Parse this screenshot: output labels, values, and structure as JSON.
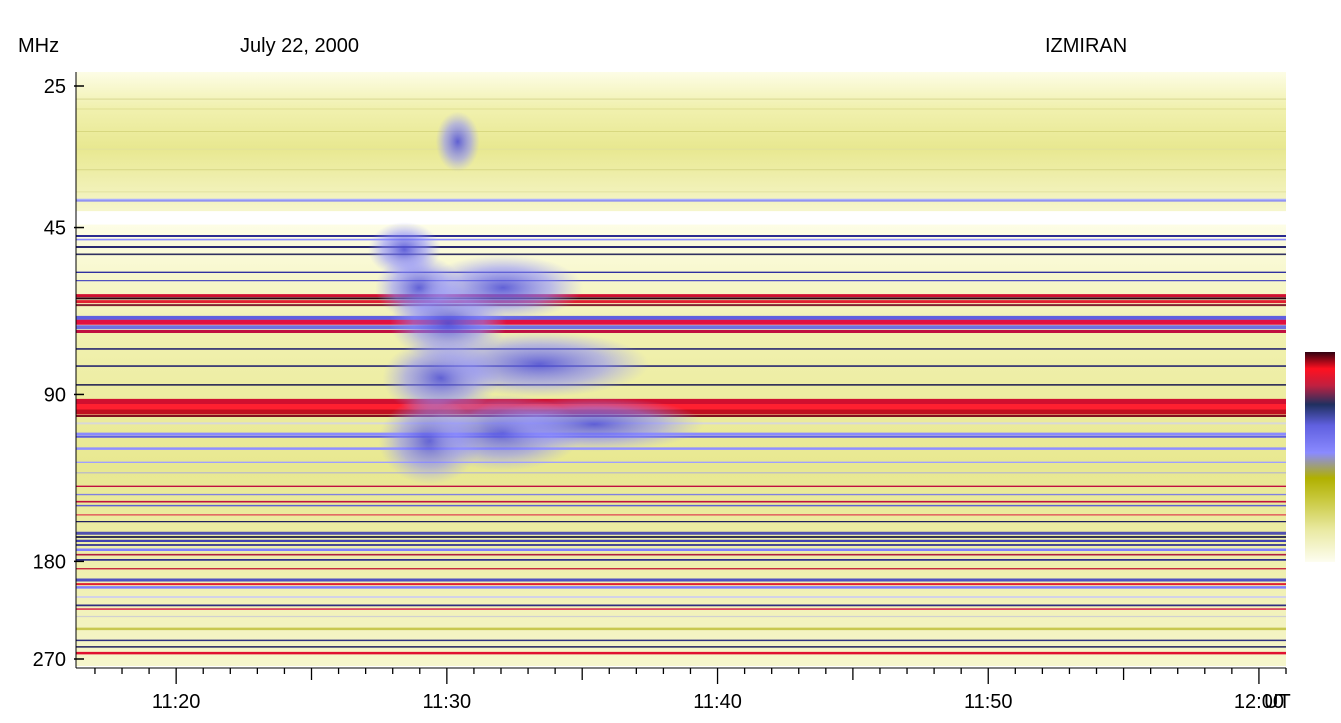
{
  "chart_data": {
    "type": "heatmap",
    "title": "July 22, 2000",
    "observatory": "IZMIRAN",
    "ylabel": "MHz",
    "xlabel": "UT",
    "y_scale": "log",
    "y_range": [
      25,
      270
    ],
    "y_ticks": [
      {
        "value": 25,
        "label": "25"
      },
      {
        "value": 45,
        "label": "45"
      },
      {
        "value": 90,
        "label": "90"
      },
      {
        "value": 180,
        "label": "180"
      },
      {
        "value": 270,
        "label": "270"
      }
    ],
    "x_range_minutes": [
      676.3,
      721.0
    ],
    "x_ticks": [
      {
        "value": 680,
        "label": "11:20"
      },
      {
        "value": 690,
        "label": "11:30"
      },
      {
        "value": 700,
        "label": "11:40"
      },
      {
        "value": 710,
        "label": "11:50"
      },
      {
        "value": 720,
        "label": "12:00"
      }
    ],
    "bands_mhz": [
      [
        25,
        41
      ],
      [
        45,
        270
      ]
    ],
    "colorbar": [
      "#fdfdf0",
      "#eaeaa4",
      "#c8c83c",
      "#b0b000",
      "#8a8aff",
      "#6060e0",
      "#203060",
      "#c02040",
      "#ff1020",
      "#300010"
    ],
    "background_gradient": [
      "#fdfde6",
      "#f1f1b0",
      "#e4e480",
      "#d6d650"
    ],
    "interference_lines": [
      {
        "f": 26.4,
        "c": "#dddd99",
        "w": 1.2
      },
      {
        "f": 27.5,
        "c": "#e0e090",
        "w": 1
      },
      {
        "f": 30.2,
        "c": "#d8d880",
        "w": 1
      },
      {
        "f": 32.5,
        "c": "#e3e39a",
        "w": 1.2
      },
      {
        "f": 35.4,
        "c": "#d7d785",
        "w": 1
      },
      {
        "f": 38.8,
        "c": "#e2e2a0",
        "w": 1
      },
      {
        "f": 40.1,
        "c": "#aab0ff",
        "w": 2
      },
      {
        "f": 40.3,
        "c": "#8a8af0",
        "w": 1.4
      },
      {
        "f": 46.6,
        "c": "#2a2a90",
        "w": 2
      },
      {
        "f": 47.3,
        "c": "#8a8aff",
        "w": 1.6
      },
      {
        "f": 48.8,
        "c": "#2a2a70",
        "w": 2
      },
      {
        "f": 50.3,
        "c": "#303060",
        "w": 1.6
      },
      {
        "f": 54.2,
        "c": "#3030a0",
        "w": 1.4
      },
      {
        "f": 56.1,
        "c": "#5050c0",
        "w": 1.2
      },
      {
        "f": 59.7,
        "c": "#d01030",
        "w": 3
      },
      {
        "f": 60.4,
        "c": "#300010",
        "w": 2
      },
      {
        "f": 61.2,
        "c": "#e02030",
        "w": 3
      },
      {
        "f": 62.1,
        "c": "#802030",
        "w": 2
      },
      {
        "f": 65.5,
        "c": "#6060e0",
        "w": 4
      },
      {
        "f": 66.7,
        "c": "#e01040",
        "w": 5
      },
      {
        "f": 68.1,
        "c": "#7070e0",
        "w": 4
      },
      {
        "f": 69.3,
        "c": "#c01040",
        "w": 3
      },
      {
        "f": 74.5,
        "c": "#2a2a70",
        "w": 1.6
      },
      {
        "f": 80.0,
        "c": "#2a2a70",
        "w": 1.6
      },
      {
        "f": 86.5,
        "c": "#1a1a50",
        "w": 1.5
      },
      {
        "f": 92.8,
        "c": "#d01030",
        "w": 6
      },
      {
        "f": 94.8,
        "c": "#ff2030",
        "w": 6
      },
      {
        "f": 96.8,
        "c": "#c01020",
        "w": 5
      },
      {
        "f": 98.4,
        "c": "#801020",
        "w": 2
      },
      {
        "f": 101.5,
        "c": "#d8d8d8",
        "w": 2
      },
      {
        "f": 106.1,
        "c": "#8a8aff",
        "w": 3
      },
      {
        "f": 107.3,
        "c": "#6060e0",
        "w": 1.8
      },
      {
        "f": 112.7,
        "c": "#9090ff",
        "w": 2.5
      },
      {
        "f": 119.3,
        "c": "#a0a0ff",
        "w": 1.4
      },
      {
        "f": 124.6,
        "c": "#c0c0c0",
        "w": 1.5
      },
      {
        "f": 131.8,
        "c": "#c01040",
        "w": 1.4
      },
      {
        "f": 136.4,
        "c": "#8080e0",
        "w": 1.3
      },
      {
        "f": 140.5,
        "c": "#c01040",
        "w": 1.6
      },
      {
        "f": 142.8,
        "c": "#6060d0",
        "w": 1.4
      },
      {
        "f": 148.4,
        "c": "#e04050",
        "w": 1.2
      },
      {
        "f": 152.6,
        "c": "#202060",
        "w": 1.2
      },
      {
        "f": 160.2,
        "c": "#5050b0",
        "w": 3
      },
      {
        "f": 162.7,
        "c": "#1a1a50",
        "w": 1.8
      },
      {
        "f": 165.3,
        "c": "#4040b0",
        "w": 2.2
      },
      {
        "f": 168.2,
        "c": "#303090",
        "w": 1.8
      },
      {
        "f": 171.5,
        "c": "#8080ff",
        "w": 2.5
      },
      {
        "f": 175.1,
        "c": "#b02040",
        "w": 1.6
      },
      {
        "f": 178.9,
        "c": "#303090",
        "w": 1.8
      },
      {
        "f": 185.6,
        "c": "#c01030",
        "w": 1.2
      },
      {
        "f": 194.5,
        "c": "#5050c0",
        "w": 3
      },
      {
        "f": 197.8,
        "c": "#e02030",
        "w": 2
      },
      {
        "f": 200.5,
        "c": "#8080ff",
        "w": 2.5
      },
      {
        "f": 208.7,
        "c": "#c8c8f8",
        "w": 1.4
      },
      {
        "f": 216.1,
        "c": "#303080",
        "w": 1.8
      },
      {
        "f": 219.4,
        "c": "#d01040",
        "w": 1.4
      },
      {
        "f": 226.3,
        "c": "#d0d0d0",
        "w": 1.2
      },
      {
        "f": 238.2,
        "c": "#c8c850",
        "w": 2.5
      },
      {
        "f": 249.9,
        "c": "#303080",
        "w": 1.6
      },
      {
        "f": 256.8,
        "c": "#202060",
        "w": 1.5
      },
      {
        "f": 263.5,
        "c": "#e01030",
        "w": 2.5
      }
    ],
    "burst_region": {
      "t_start": 686.0,
      "t_end": 699.5,
      "f_low": 45,
      "f_high": 140
    },
    "colorbar_ticks": []
  }
}
